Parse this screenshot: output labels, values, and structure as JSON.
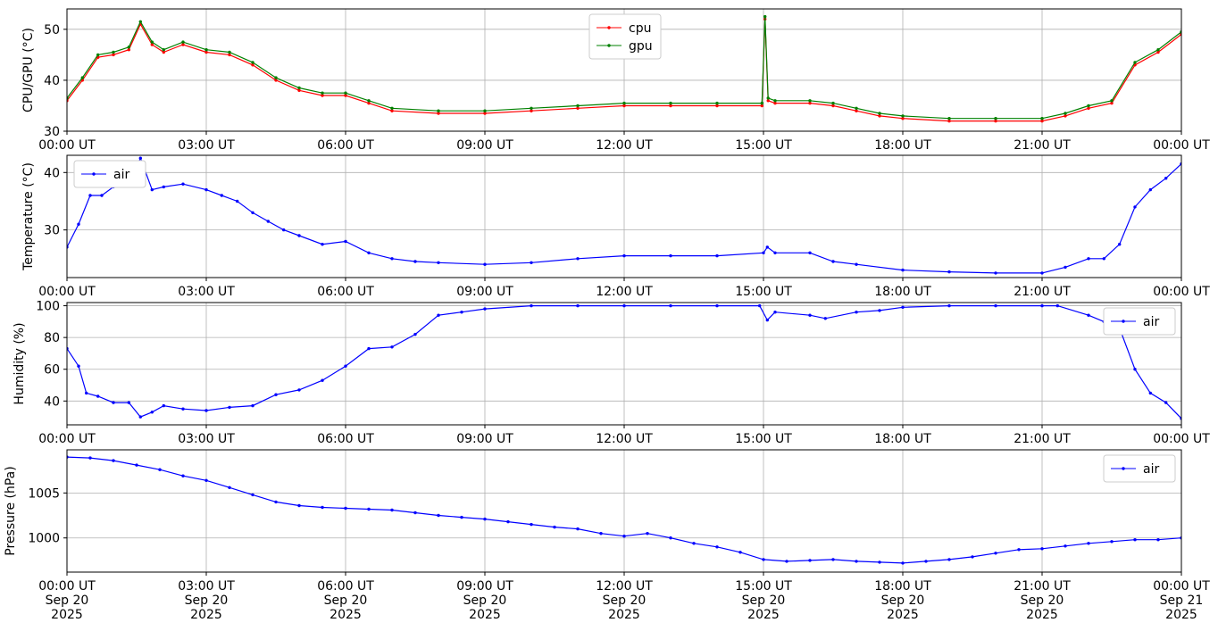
{
  "colors": {
    "cpu": "#ff0000",
    "gpu": "#008000",
    "air": "#0000ff",
    "grid": "#b0b0b0"
  },
  "x_tick_labels": [
    "00:00 UT",
    "03:00 UT",
    "06:00 UT",
    "09:00 UT",
    "12:00 UT",
    "15:00 UT",
    "18:00 UT",
    "21:00 UT",
    "00:00 UT"
  ],
  "x_tick_labels_bottom": [
    [
      "00:00 UT",
      "Sep 20",
      "2025"
    ],
    [
      "03:00 UT",
      "Sep 20",
      "2025"
    ],
    [
      "06:00 UT",
      "Sep 20",
      "2025"
    ],
    [
      "09:00 UT",
      "Sep 20",
      "2025"
    ],
    [
      "12:00 UT",
      "Sep 20",
      "2025"
    ],
    [
      "15:00 UT",
      "Sep 20",
      "2025"
    ],
    [
      "18:00 UT",
      "Sep 20",
      "2025"
    ],
    [
      "21:00 UT",
      "Sep 20",
      "2025"
    ],
    [
      "00:00 UT",
      "Sep 21",
      "2025"
    ]
  ],
  "chart_data": [
    {
      "type": "line",
      "ylabel": "CPU/GPU (°C)",
      "ylim": [
        30,
        54
      ],
      "yticks": [
        30,
        40,
        50
      ],
      "xlim": [
        "2025-09-20 00:00",
        "2025-09-21 00:00"
      ],
      "grid": true,
      "legend": "top-center",
      "x": [
        "2025-09-20 00:00",
        "2025-09-20 00:20",
        "2025-09-20 00:40",
        "2025-09-20 01:00",
        "2025-09-20 01:20",
        "2025-09-20 01:35",
        "2025-09-20 01:50",
        "2025-09-20 02:05",
        "2025-09-20 02:30",
        "2025-09-20 03:00",
        "2025-09-20 03:30",
        "2025-09-20 04:00",
        "2025-09-20 04:30",
        "2025-09-20 05:00",
        "2025-09-20 05:30",
        "2025-09-20 06:00",
        "2025-09-20 06:30",
        "2025-09-20 07:00",
        "2025-09-20 08:00",
        "2025-09-20 09:00",
        "2025-09-20 10:00",
        "2025-09-20 11:00",
        "2025-09-20 12:00",
        "2025-09-20 13:00",
        "2025-09-20 14:00",
        "2025-09-20 14:58",
        "2025-09-20 15:02",
        "2025-09-20 15:06",
        "2025-09-20 15:15",
        "2025-09-20 16:00",
        "2025-09-20 16:30",
        "2025-09-20 17:00",
        "2025-09-20 17:30",
        "2025-09-20 18:00",
        "2025-09-20 19:00",
        "2025-09-20 20:00",
        "2025-09-20 21:00",
        "2025-09-20 21:30",
        "2025-09-20 22:00",
        "2025-09-20 22:30",
        "2025-09-20 23:00",
        "2025-09-20 23:30",
        "2025-09-21 00:00"
      ],
      "series": [
        {
          "name": "cpu",
          "values": [
            36,
            40,
            44.5,
            45,
            46,
            51,
            47,
            45.5,
            47,
            45.5,
            45,
            43,
            40,
            38,
            37,
            37,
            35.5,
            34,
            33.5,
            33.5,
            34,
            34.5,
            35,
            35,
            35,
            35,
            52,
            36,
            35.5,
            35.5,
            35,
            34,
            33,
            32.5,
            32,
            32,
            32,
            33,
            34.5,
            35.5,
            43,
            45.5,
            49
          ]
        },
        {
          "name": "gpu",
          "values": [
            36.5,
            40.5,
            45,
            45.5,
            46.5,
            51.5,
            47.5,
            46,
            47.5,
            46,
            45.5,
            43.5,
            40.5,
            38.5,
            37.5,
            37.5,
            36,
            34.5,
            34,
            34,
            34.5,
            35,
            35.5,
            35.5,
            35.5,
            35.5,
            52.5,
            36.5,
            36,
            36,
            35.5,
            34.5,
            33.5,
            33,
            32.5,
            32.5,
            32.5,
            33.5,
            35,
            36,
            43.5,
            46,
            49.5
          ]
        }
      ]
    },
    {
      "type": "line",
      "ylabel": "Temperature (°C)",
      "ylim": [
        21.7,
        43
      ],
      "yticks": [
        30,
        40
      ],
      "xlim": [
        "2025-09-20 00:00",
        "2025-09-21 00:00"
      ],
      "grid": true,
      "legend": "top-left",
      "x": [
        "2025-09-20 00:00",
        "2025-09-20 00:15",
        "2025-09-20 00:30",
        "2025-09-20 00:45",
        "2025-09-20 01:00",
        "2025-09-20 01:20",
        "2025-09-20 01:35",
        "2025-09-20 01:50",
        "2025-09-20 02:05",
        "2025-09-20 02:30",
        "2025-09-20 03:00",
        "2025-09-20 03:20",
        "2025-09-20 03:40",
        "2025-09-20 04:00",
        "2025-09-20 04:20",
        "2025-09-20 04:40",
        "2025-09-20 05:00",
        "2025-09-20 05:30",
        "2025-09-20 06:00",
        "2025-09-20 06:30",
        "2025-09-20 07:00",
        "2025-09-20 07:30",
        "2025-09-20 08:00",
        "2025-09-20 09:00",
        "2025-09-20 10:00",
        "2025-09-20 11:00",
        "2025-09-20 12:00",
        "2025-09-20 13:00",
        "2025-09-20 14:00",
        "2025-09-20 15:00",
        "2025-09-20 15:05",
        "2025-09-20 15:15",
        "2025-09-20 16:00",
        "2025-09-20 16:30",
        "2025-09-20 17:00",
        "2025-09-20 18:00",
        "2025-09-20 19:00",
        "2025-09-20 20:00",
        "2025-09-20 21:00",
        "2025-09-20 21:30",
        "2025-09-20 22:00",
        "2025-09-20 22:20",
        "2025-09-20 22:40",
        "2025-09-20 23:00",
        "2025-09-20 23:20",
        "2025-09-20 23:40",
        "2025-09-21 00:00"
      ],
      "series": [
        {
          "name": "air",
          "values": [
            27,
            31,
            36,
            36,
            37.5,
            38,
            42.5,
            37,
            37.5,
            38,
            37,
            36,
            35,
            33,
            31.5,
            30,
            29,
            27.5,
            28,
            26,
            25,
            24.5,
            24.3,
            24,
            24.3,
            25,
            25.5,
            25.5,
            25.5,
            26,
            27,
            26,
            26,
            24.5,
            24,
            23,
            22.7,
            22.5,
            22.5,
            23.5,
            25,
            25,
            27.5,
            34,
            37,
            39,
            41.5
          ]
        }
      ]
    },
    {
      "type": "line",
      "ylabel": "Humidity (%)",
      "ylim": [
        25,
        102
      ],
      "yticks": [
        40,
        60,
        80,
        100
      ],
      "xlim": [
        "2025-09-20 00:00",
        "2025-09-21 00:00"
      ],
      "grid": true,
      "legend": "top-right",
      "x": [
        "2025-09-20 00:00",
        "2025-09-20 00:15",
        "2025-09-20 00:25",
        "2025-09-20 00:40",
        "2025-09-20 01:00",
        "2025-09-20 01:20",
        "2025-09-20 01:35",
        "2025-09-20 01:50",
        "2025-09-20 02:05",
        "2025-09-20 02:30",
        "2025-09-20 03:00",
        "2025-09-20 03:30",
        "2025-09-20 04:00",
        "2025-09-20 04:30",
        "2025-09-20 05:00",
        "2025-09-20 05:30",
        "2025-09-20 06:00",
        "2025-09-20 06:30",
        "2025-09-20 07:00",
        "2025-09-20 07:30",
        "2025-09-20 08:00",
        "2025-09-20 08:30",
        "2025-09-20 09:00",
        "2025-09-20 10:00",
        "2025-09-20 11:00",
        "2025-09-20 12:00",
        "2025-09-20 13:00",
        "2025-09-20 14:00",
        "2025-09-20 14:55",
        "2025-09-20 15:05",
        "2025-09-20 15:15",
        "2025-09-20 16:00",
        "2025-09-20 16:20",
        "2025-09-20 17:00",
        "2025-09-20 17:30",
        "2025-09-20 18:00",
        "2025-09-20 19:00",
        "2025-09-20 20:00",
        "2025-09-20 21:00",
        "2025-09-20 21:20",
        "2025-09-20 22:00",
        "2025-09-20 22:20",
        "2025-09-20 22:40",
        "2025-09-20 23:00",
        "2025-09-20 23:20",
        "2025-09-20 23:40",
        "2025-09-21 00:00"
      ],
      "series": [
        {
          "name": "air",
          "values": [
            73,
            62,
            45,
            43,
            39,
            39,
            30,
            33,
            37,
            35,
            34,
            36,
            37,
            44,
            47,
            53,
            62,
            73,
            74,
            82,
            94,
            96,
            98,
            100,
            100,
            100,
            100,
            100,
            100,
            91,
            96,
            94,
            92,
            96,
            97,
            99,
            100,
            100,
            100,
            100,
            94,
            90,
            86,
            60,
            45,
            39,
            29
          ]
        }
      ]
    },
    {
      "type": "line",
      "ylabel": "Pressure (hPa)",
      "ylim": [
        996.2,
        1009.8
      ],
      "yticks": [
        1000,
        1005
      ],
      "xlim": [
        "2025-09-20 00:00",
        "2025-09-21 00:00"
      ],
      "grid": true,
      "legend": "top-right",
      "x": [
        "2025-09-20 00:00",
        "2025-09-20 00:30",
        "2025-09-20 01:00",
        "2025-09-20 01:30",
        "2025-09-20 02:00",
        "2025-09-20 02:30",
        "2025-09-20 03:00",
        "2025-09-20 03:30",
        "2025-09-20 04:00",
        "2025-09-20 04:30",
        "2025-09-20 05:00",
        "2025-09-20 05:30",
        "2025-09-20 06:00",
        "2025-09-20 06:30",
        "2025-09-20 07:00",
        "2025-09-20 07:30",
        "2025-09-20 08:00",
        "2025-09-20 08:30",
        "2025-09-20 09:00",
        "2025-09-20 09:30",
        "2025-09-20 10:00",
        "2025-09-20 10:30",
        "2025-09-20 11:00",
        "2025-09-20 11:30",
        "2025-09-20 12:00",
        "2025-09-20 12:30",
        "2025-09-20 13:00",
        "2025-09-20 13:30",
        "2025-09-20 14:00",
        "2025-09-20 14:30",
        "2025-09-20 15:00",
        "2025-09-20 15:30",
        "2025-09-20 16:00",
        "2025-09-20 16:30",
        "2025-09-20 17:00",
        "2025-09-20 17:30",
        "2025-09-20 18:00",
        "2025-09-20 18:30",
        "2025-09-20 19:00",
        "2025-09-20 19:30",
        "2025-09-20 20:00",
        "2025-09-20 20:30",
        "2025-09-20 21:00",
        "2025-09-20 21:30",
        "2025-09-20 22:00",
        "2025-09-20 22:30",
        "2025-09-20 23:00",
        "2025-09-20 23:30",
        "2025-09-21 00:00"
      ],
      "series": [
        {
          "name": "air",
          "values": [
            1009,
            1008.9,
            1008.6,
            1008.1,
            1007.6,
            1006.9,
            1006.4,
            1005.6,
            1004.8,
            1004.0,
            1003.6,
            1003.4,
            1003.3,
            1003.2,
            1003.1,
            1002.8,
            1002.5,
            1002.3,
            1002.1,
            1001.8,
            1001.5,
            1001.2,
            1001.0,
            1000.5,
            1000.2,
            1000.5,
            1000.0,
            999.4,
            999.0,
            998.4,
            997.6,
            997.4,
            997.5,
            997.6,
            997.4,
            997.3,
            997.2,
            997.4,
            997.6,
            997.9,
            998.3,
            998.7,
            998.8,
            999.1,
            999.4,
            999.6,
            999.8,
            999.8,
            1000.0
          ]
        }
      ]
    }
  ]
}
